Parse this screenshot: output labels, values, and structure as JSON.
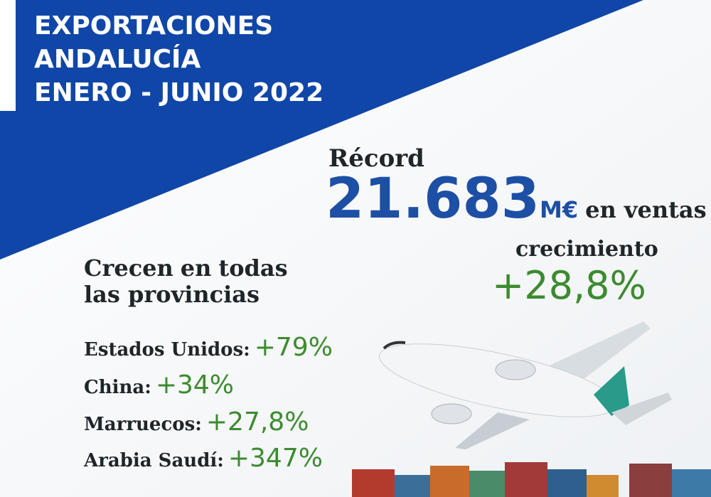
{
  "header": {
    "title": [
      "EXPORTACIONES",
      "ANDALUCÍA",
      "ENERO - JUNIO 2022"
    ]
  },
  "record": {
    "label": "Récord",
    "value": "21.683",
    "unit": "M€",
    "suffix": "en ventas"
  },
  "growth": {
    "label": "crecimiento",
    "value": "+28,8%"
  },
  "provinces": {
    "words": [
      "Crecen",
      "en",
      "todas"
    ],
    "line2": "las provincias"
  },
  "countries": [
    {
      "name": "Estados Unidos:",
      "value": "+79%"
    },
    {
      "name": "China:",
      "value": "+34%"
    },
    {
      "name": "Marruecos:",
      "value": "+27,8%"
    },
    {
      "name": "Arabia Saudí:",
      "value": "+347%"
    }
  ]
}
